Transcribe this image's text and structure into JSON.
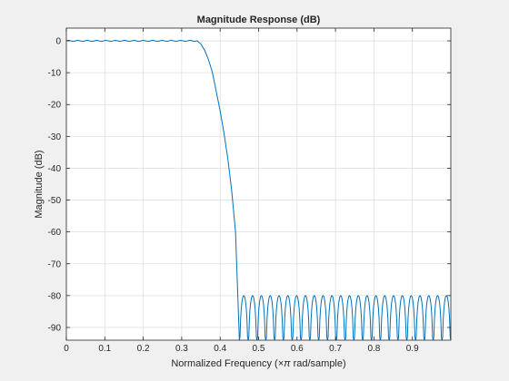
{
  "chart_data": {
    "type": "line",
    "title": "Magnitude Response (dB)",
    "xlabel": "Normalized Frequency",
    "xlabel_symbol": "×π",
    "xlabel_unit": "rad/sample)",
    "xlabel_open": "(",
    "ylabel": "Magnitude (dB)",
    "xlim": [
      0,
      1
    ],
    "ylim": [
      -94,
      4
    ],
    "grid": true,
    "x_ticks": [
      0,
      0.1,
      0.2,
      0.3,
      0.4,
      0.5,
      0.6,
      0.7,
      0.8,
      0.9
    ],
    "x_tick_labels": [
      "0",
      "0.1",
      "0.2",
      "0.3",
      "0.4",
      "0.5",
      "0.6",
      "0.7",
      "0.8",
      "0.9"
    ],
    "y_ticks": [
      0,
      -10,
      -20,
      -30,
      -40,
      -50,
      -60,
      -70,
      -80,
      -90
    ],
    "y_tick_labels": [
      "0",
      "-10",
      "-20",
      "-30",
      "-40",
      "-50",
      "-60",
      "-70",
      "-80",
      "-90"
    ],
    "series": [
      {
        "color": "#0072bd",
        "passband": {
          "x": [
            0,
            0.34
          ],
          "level": 0,
          "ripple": 0.15
        },
        "transition": {
          "x": [
            0.34,
            0.35,
            0.36,
            0.37,
            0.38,
            0.39,
            0.4,
            0.41,
            0.42,
            0.43,
            0.44,
            0.45
          ],
          "y": [
            0,
            -1,
            -3,
            -6,
            -10,
            -16,
            -22,
            -29,
            -37,
            -47,
            -60,
            -94
          ]
        },
        "stopband": {
          "x": [
            0.45,
            1.0
          ],
          "peak": -80,
          "lobes": 24,
          "floor": -94
        }
      }
    ]
  }
}
